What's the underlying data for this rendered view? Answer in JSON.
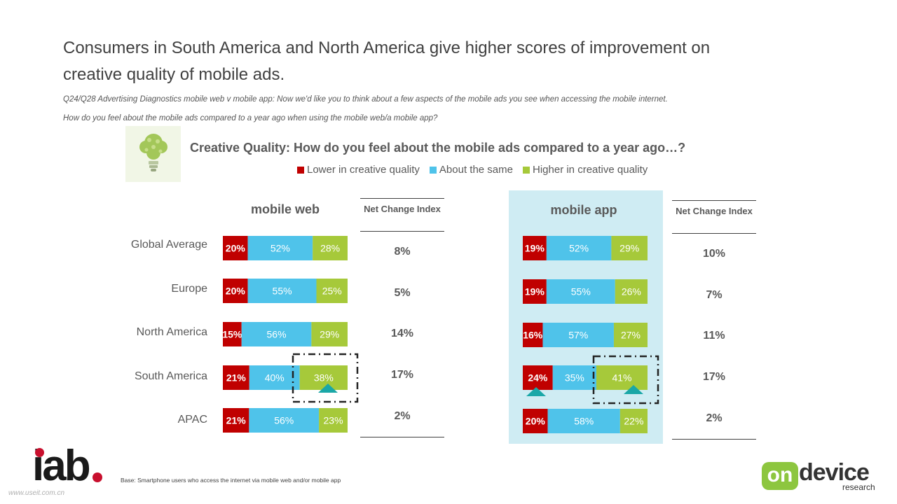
{
  "slide": {
    "title": "Consumers in South America and North America give higher scores of improvement on creative quality of mobile ads.",
    "question_line1": "Q24/Q28 Advertising Diagnostics mobile web v mobile app: Now we'd like you to think about a few aspects of the mobile ads you see when accessing the mobile internet.",
    "question_line2": "How do you feel about the mobile ads compared to a year ago when using the mobile web/a mobile app?",
    "footnote": "Base: Smartphone users who access the internet via mobile web and/or mobile app",
    "watermark": "www.useit.com.cn"
  },
  "logos": {
    "iab_text": "iab",
    "ondevice_on": "on",
    "ondevice_device": "device",
    "ondevice_research": "research"
  },
  "colors": {
    "lower": "#c00000",
    "same": "#4fc3ea",
    "higher": "#a6c93a",
    "app_panel": "#cfecf3",
    "highlight_marker": "#1aa7a7"
  },
  "chart_data": {
    "type": "stacked-bar",
    "title": "Creative Quality: How do you feel about the mobile ads compared to a year ago…?",
    "legend": [
      "Lower in creative quality",
      "About the same",
      "Higher in creative quality"
    ],
    "legend_position": "top",
    "categories": [
      "Global Average",
      "Europe",
      "North America",
      "South America",
      "APAC"
    ],
    "panels": [
      {
        "name": "mobile web",
        "series": [
          {
            "name": "Lower in creative quality",
            "values": [
              20,
              20,
              15,
              21,
              21
            ]
          },
          {
            "name": "About the same",
            "values": [
              52,
              55,
              56,
              40,
              56
            ]
          },
          {
            "name": "Higher in creative quality",
            "values": [
              28,
              25,
              29,
              38,
              23
            ]
          }
        ],
        "net_change_header": "Net Change Index",
        "net_change": [
          "8%",
          "5%",
          "14%",
          "17%",
          "2%"
        ],
        "highlighted": [
          "South America: Higher in creative quality"
        ]
      },
      {
        "name": "mobile app",
        "series": [
          {
            "name": "Lower in creative quality",
            "values": [
              19,
              19,
              16,
              24,
              20
            ]
          },
          {
            "name": "About the same",
            "values": [
              52,
              55,
              57,
              35,
              58
            ]
          },
          {
            "name": "Higher in creative quality",
            "values": [
              29,
              26,
              27,
              41,
              22
            ]
          }
        ],
        "net_change_header": "Net Change Index",
        "net_change": [
          "10%",
          "7%",
          "11%",
          "17%",
          "2%"
        ],
        "highlighted": [
          "South America: Lower in creative quality",
          "South America: Higher in creative quality"
        ]
      }
    ],
    "value_suffix": "%"
  }
}
